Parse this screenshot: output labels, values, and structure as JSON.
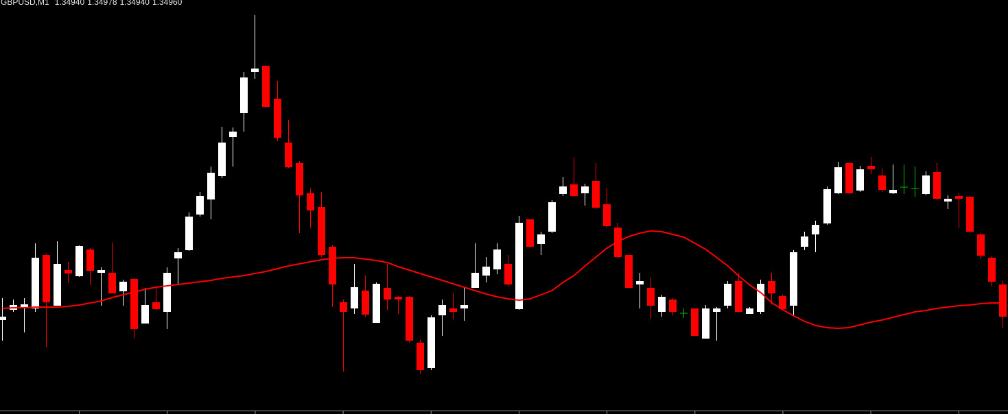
{
  "chart_data": {
    "type": "candlestick",
    "title": "GBPUSD,M1",
    "quote": [
      "1.34940",
      "1.34978",
      "1.34940",
      "1.34960"
    ],
    "ylim": [
      0,
      600
    ],
    "up_color": "#ffffff",
    "down_color": "#ff0000",
    "doji_color": "#00c000",
    "open": [
      133,
      148,
      152,
      150,
      228,
      154,
      206,
      197,
      236,
      202,
      202,
      175,
      193,
      128,
      159,
      145,
      223,
      235,
      287,
      309,
      343,
      400,
      435,
      495,
      504,
      456,
      392,
      362,
      318,
      298,
      240,
      159,
      150,
      176,
      129,
      180,
      167,
      167,
      100,
      63,
      140,
      150,
      150,
      180,
      198,
      207,
      215,
      149,
      280,
      244,
      262,
      317,
      331,
      318,
      336,
      302,
      268,
      228,
      185,
      180,
      145,
      163,
      143,
      150,
      106,
      145,
      154,
      190,
      142,
      145,
      190,
      168,
      154,
      240,
      258,
      274,
      318,
      362,
      322,
      358,
      344,
      318,
      327,
      325,
      317,
      349,
      306,
      314,
      313,
      258,
      224,
      185
    ],
    "high": [
      165,
      163,
      165,
      245,
      230,
      248,
      218,
      242,
      238,
      210,
      246,
      192,
      194,
      180,
      180,
      210,
      238,
      290,
      320,
      357,
      415,
      414,
      495,
      578,
      505,
      482,
      425,
      365,
      325,
      320,
      242,
      163,
      215,
      198,
      188,
      215,
      168,
      168,
      105,
      140,
      163,
      172,
      180,
      245,
      225,
      245,
      228,
      285,
      280,
      262,
      308,
      342,
      370,
      332,
      362,
      325,
      275,
      228,
      202,
      195,
      170,
      165,
      150,
      150,
      155,
      152,
      190,
      202,
      152,
      192,
      202,
      170,
      235,
      262,
      278,
      328,
      364,
      364,
      358,
      371,
      354,
      360,
      360,
      357,
      350,
      362,
      315,
      318,
      315,
      260,
      226,
      190
    ],
    "low": [
      103,
      145,
      115,
      145,
      94,
      154,
      187,
      196,
      184,
      154,
      172,
      154,
      107,
      128,
      147,
      120,
      184,
      234,
      284,
      280,
      340,
      357,
      408,
      485,
      443,
      394,
      355,
      260,
      268,
      225,
      152,
      58,
      142,
      138,
      129,
      148,
      142,
      100,
      55,
      60,
      110,
      134,
      132,
      180,
      188,
      200,
      182,
      148,
      238,
      228,
      260,
      314,
      312,
      300,
      295,
      268,
      224,
      180,
      150,
      135,
      138,
      140,
      136,
      110,
      106,
      103,
      150,
      144,
      142,
      142,
      156,
      148,
      140,
      235,
      232,
      272,
      317,
      317,
      320,
      346,
      320,
      317,
      317,
      313,
      315,
      308,
      295,
      268,
      260,
      222,
      182,
      122
    ],
    "close": [
      138,
      155,
      156,
      224,
      159,
      215,
      201,
      241,
      205,
      206,
      172,
      189,
      120,
      155,
      149,
      202,
      232,
      284,
      314,
      348,
      392,
      408,
      487,
      500,
      444,
      399,
      356,
      315,
      293,
      228,
      185,
      145,
      181,
      141,
      186,
      163,
      163,
      103,
      60,
      137,
      155,
      145,
      155,
      202,
      211,
      236,
      185,
      275,
      240,
      258,
      305,
      328,
      314,
      328,
      297,
      270,
      225,
      180,
      190,
      154,
      167,
      145,
      143,
      110,
      150,
      150,
      186,
      145,
      150,
      186,
      172,
      149,
      232,
      255,
      272,
      324,
      356,
      318,
      353,
      353,
      323,
      323,
      327,
      325,
      344,
      310,
      310,
      310,
      262,
      227,
      189,
      138
    ],
    "ma": {
      "color": "#ff0000",
      "values": [
        150,
        151,
        151,
        152,
        152,
        152,
        153,
        155,
        158,
        161,
        166,
        170,
        174,
        178,
        181,
        183,
        185,
        187,
        189,
        191,
        194,
        196,
        198,
        201,
        204,
        208,
        212,
        215,
        218,
        221,
        223,
        224,
        224,
        222,
        220,
        217,
        211,
        206,
        201,
        196,
        191,
        186,
        181,
        176,
        171,
        167,
        164,
        162,
        164,
        170,
        176,
        188,
        198,
        212,
        225,
        238,
        248,
        255,
        260,
        263,
        262,
        258,
        254,
        245,
        236,
        224,
        212,
        197,
        184,
        173,
        158,
        148,
        139,
        131,
        125,
        122,
        121,
        122,
        126,
        130,
        133,
        137,
        141,
        145,
        147,
        150,
        152,
        154,
        155,
        157,
        158,
        158
      ]
    }
  }
}
